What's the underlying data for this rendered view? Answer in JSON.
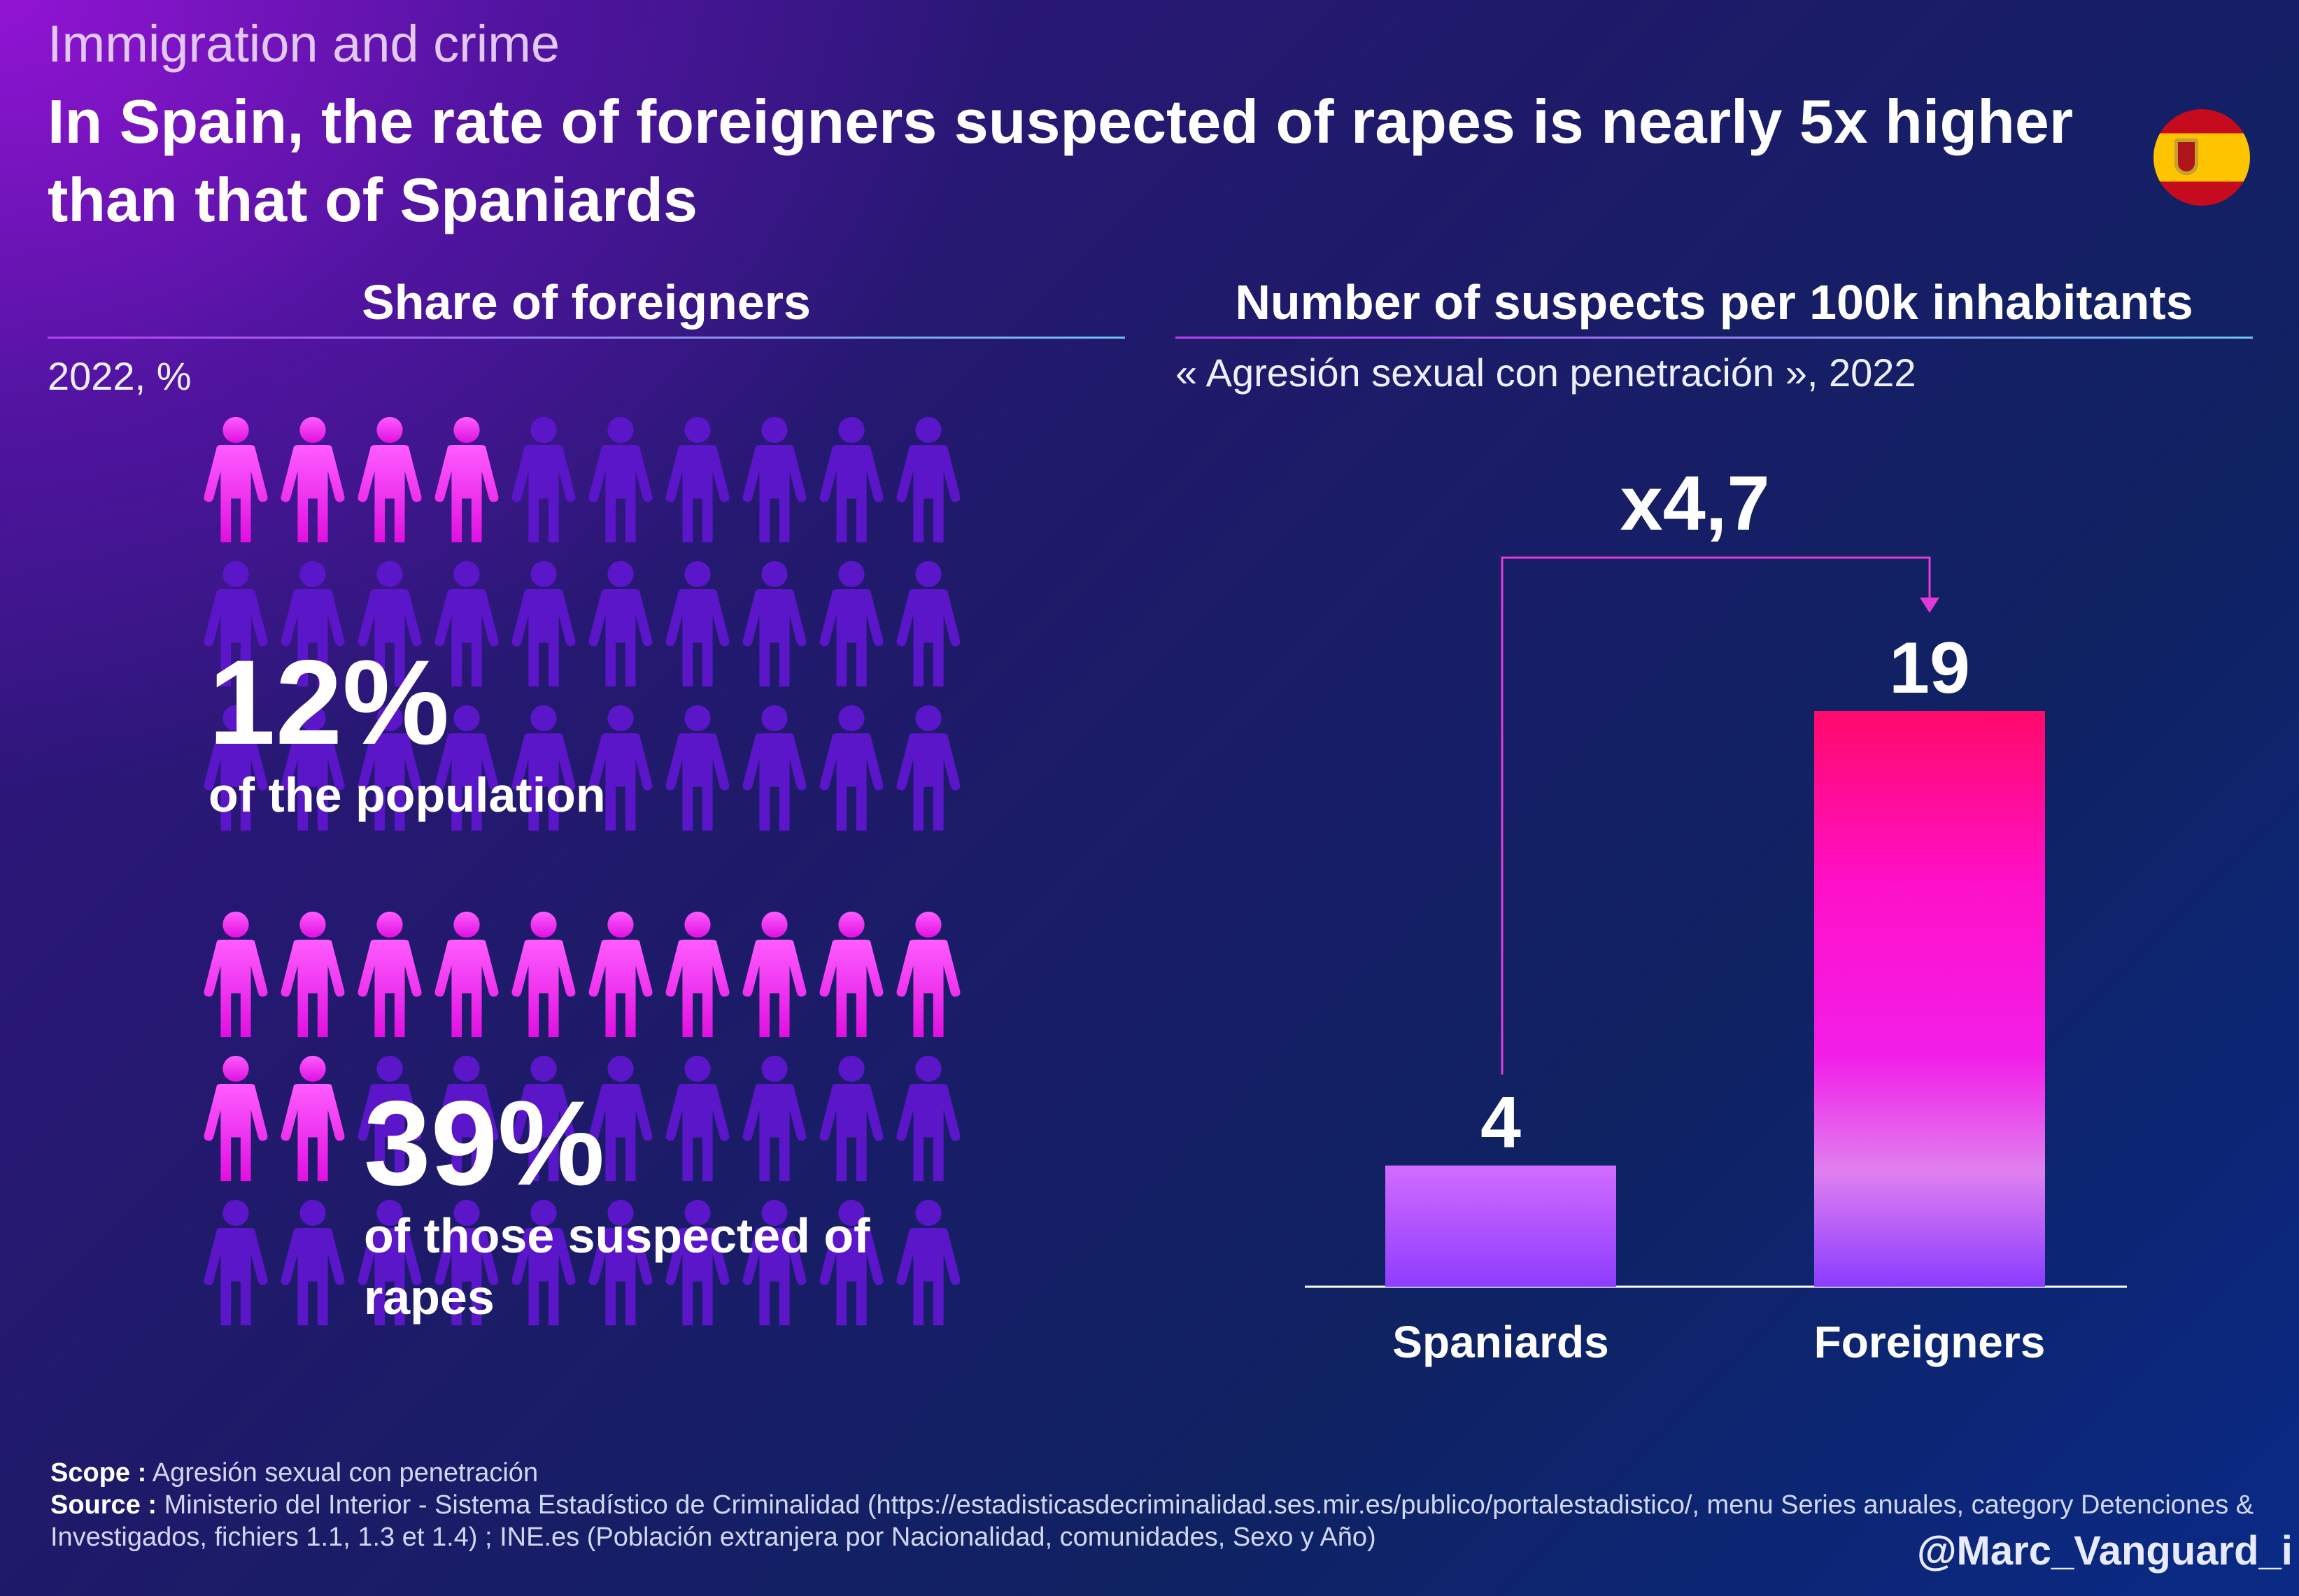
{
  "kicker": "Immigration and crime",
  "title": "In Spain, the rate of foreigners suspected of rapes is nearly 5x higher than that of Spaniards",
  "flag_icon": "spain-flag-icon",
  "left_panel": {
    "title": "Share of foreigners",
    "subtitle": "2022, %",
    "population": {
      "pct": "12%",
      "label": "of the population",
      "share": 0.12
    },
    "suspects": {
      "pct": "39%",
      "label": "of those suspected of rapes",
      "share": 0.39
    },
    "colors": {
      "highlight_top": "#ff5cff",
      "highlight_bottom": "#e010e0",
      "muted": "#5b16c9"
    }
  },
  "right_panel": {
    "title": "Number of suspects per 100k inhabitants",
    "subtitle": "« Agresión sexual con penetración », 2022"
  },
  "chart_data": {
    "type": "bar",
    "categories": [
      "Spaniards",
      "Foreigners"
    ],
    "values": [
      4,
      19
    ],
    "value_labels": [
      "4",
      "19"
    ],
    "ratio_label": "x4,7",
    "ylim": [
      0,
      19
    ]
  },
  "footer": {
    "scope_label": "Scope :",
    "scope_text": "Agresión sexual con penetración",
    "source_label": "Source :",
    "source_text": "Ministerio del Interior - Sistema Estadístico de Criminalidad (https://estadisticasdecriminalidad.ses.mir.es/publico/portalestadistico/, menu Series anuales, category Detenciones & Investigados, fichiers 1.1, 1.3 et 1.4) ; INE.es (Población extranjera por Nacionalidad, comunidades, Sexo y Año)"
  },
  "handle": "@Marc_Vanguard_i"
}
